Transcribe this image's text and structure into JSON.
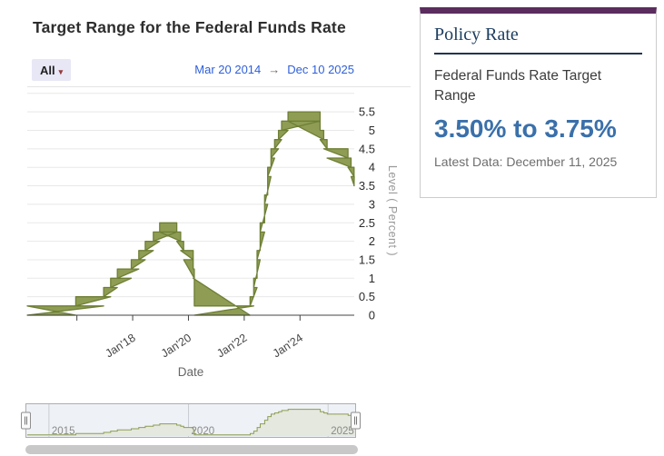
{
  "header": {
    "title": "Target Range for the Federal Funds Rate",
    "range_selector": {
      "label": "All",
      "caret": "▾"
    },
    "date_range": {
      "start": "Mar 20 2014",
      "arrow": "→",
      "end": "Dec 10 2025"
    }
  },
  "policy_panel": {
    "heading": "Policy Rate",
    "series_name": "Federal Funds Rate Target Range",
    "current_range": "3.50% to 3.75%",
    "latest_data": "Latest Data: December 11, 2025",
    "accent_color": "#5b2c5e",
    "value_color": "#3a70ab"
  },
  "chart_data": {
    "type": "area",
    "subtype": "step-range-band",
    "title": "Target Range for the Federal Funds Rate",
    "xlabel": "Date",
    "ylabel": "Level ( Percent )",
    "ylim": [
      0,
      5.5
    ],
    "grid": true,
    "band_color": "#8e9d53",
    "band_stroke": "#6e7f35",
    "x_range": [
      2014.22,
      2025.945
    ],
    "yticks": [
      {
        "v": 0,
        "label": "0"
      },
      {
        "v": 0.5,
        "label": "0.5"
      },
      {
        "v": 1,
        "label": "1"
      },
      {
        "v": 1.5,
        "label": "1.5"
      },
      {
        "v": 2,
        "label": "2"
      },
      {
        "v": 2.5,
        "label": "2.5"
      },
      {
        "v": 3,
        "label": "3"
      },
      {
        "v": 3.5,
        "label": "3.5"
      },
      {
        "v": 4,
        "label": "4"
      },
      {
        "v": 4.5,
        "label": "4.5"
      },
      {
        "v": 5,
        "label": "5"
      },
      {
        "v": 5.5,
        "label": "5.5"
      }
    ],
    "xticks": [
      {
        "t": 2016,
        "label": ""
      },
      {
        "t": 2018,
        "label": "Jan'18"
      },
      {
        "t": 2020,
        "label": "Jan'20"
      },
      {
        "t": 2022,
        "label": "Jan'22"
      },
      {
        "t": 2024,
        "label": "Jan'24"
      }
    ],
    "points_format": [
      "decimal_year",
      "lower_pct",
      "upper_pct"
    ],
    "points": [
      [
        2014.22,
        0.0,
        0.25
      ],
      [
        2015.96,
        0.25,
        0.5
      ],
      [
        2016.96,
        0.5,
        0.75
      ],
      [
        2017.21,
        0.75,
        1.0
      ],
      [
        2017.45,
        1.0,
        1.25
      ],
      [
        2017.95,
        1.25,
        1.5
      ],
      [
        2018.22,
        1.5,
        1.75
      ],
      [
        2018.45,
        1.75,
        2.0
      ],
      [
        2018.74,
        2.0,
        2.25
      ],
      [
        2018.97,
        2.25,
        2.5
      ],
      [
        2019.58,
        2.0,
        2.25
      ],
      [
        2019.72,
        1.75,
        2.0
      ],
      [
        2019.83,
        1.5,
        1.75
      ],
      [
        2020.17,
        1.0,
        1.25
      ],
      [
        2020.21,
        0.0,
        0.25
      ],
      [
        2022.21,
        0.25,
        0.5
      ],
      [
        2022.34,
        0.75,
        1.0
      ],
      [
        2022.46,
        1.5,
        1.75
      ],
      [
        2022.57,
        2.25,
        2.5
      ],
      [
        2022.73,
        3.0,
        3.25
      ],
      [
        2022.84,
        3.75,
        4.0
      ],
      [
        2022.96,
        4.25,
        4.5
      ],
      [
        2023.09,
        4.5,
        4.75
      ],
      [
        2023.23,
        4.75,
        5.0
      ],
      [
        2023.34,
        5.0,
        5.25
      ],
      [
        2023.57,
        5.25,
        5.5
      ],
      [
        2024.72,
        4.75,
        5.0
      ],
      [
        2024.85,
        4.5,
        4.75
      ],
      [
        2024.97,
        4.25,
        4.5
      ],
      [
        2025.72,
        4.0,
        4.25
      ],
      [
        2025.83,
        3.75,
        4.0
      ],
      [
        2025.94,
        3.5,
        3.75
      ]
    ]
  },
  "navigator": {
    "x_range": [
      2014.19,
      2025.97
    ],
    "gridlines": [
      {
        "t": 2015,
        "label": "2015"
      },
      {
        "t": 2020,
        "label": "2020"
      },
      {
        "t": 2025,
        "label": "2025"
      }
    ],
    "line_color": "#8e9d53",
    "fill_color": "#e4e8de"
  }
}
